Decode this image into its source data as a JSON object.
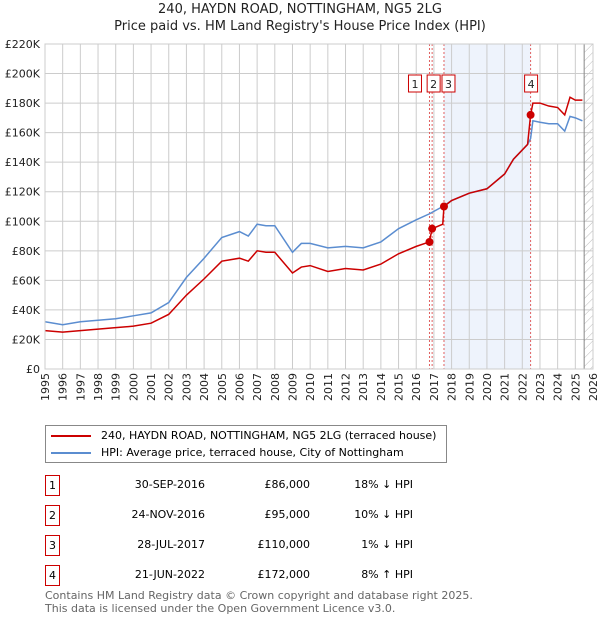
{
  "chart_data": {
    "type": "line",
    "title": "240, HAYDN ROAD, NOTTINGHAM, NG5 2LG",
    "subtitle": "Price paid vs. HM Land Registry's House Price Index (HPI)",
    "xlim": [
      1995,
      2026
    ],
    "ylim": [
      0,
      220000
    ],
    "yticks": [
      "£0",
      "£20K",
      "£40K",
      "£60K",
      "£80K",
      "£100K",
      "£120K",
      "£140K",
      "£160K",
      "£180K",
      "£200K",
      "£220K"
    ],
    "xticks": [
      "1995",
      "1996",
      "1997",
      "1998",
      "1999",
      "2000",
      "2001",
      "2002",
      "2003",
      "2004",
      "2005",
      "2006",
      "2007",
      "2008",
      "2009",
      "2010",
      "2011",
      "2012",
      "2013",
      "2014",
      "2015",
      "2016",
      "2017",
      "2018",
      "2019",
      "2020",
      "2021",
      "2022",
      "2023",
      "2024",
      "2025",
      "2026"
    ],
    "grid": true,
    "series": [
      {
        "name": "240, HAYDN ROAD, NOTTINGHAM, NG5 2LG (terraced house)",
        "color": "#cc0000",
        "x": [
          1995,
          1996,
          1997,
          1998,
          1999,
          2000,
          2001,
          2002,
          2003,
          2004,
          2005,
          2006,
          2006.5,
          2007,
          2007.5,
          2008,
          2009,
          2009.5,
          2010,
          2011,
          2012,
          2013,
          2014,
          2015,
          2016,
          2016.74,
          2016.9,
          2017.5,
          2017.57,
          2018,
          2019,
          2020,
          2021,
          2021.5,
          2022.3,
          2022.47,
          2022.6,
          2023,
          2023.5,
          2024,
          2024.4,
          2024.7,
          2025,
          2025.4
        ],
        "y": [
          26000,
          25000,
          26000,
          27000,
          28000,
          29000,
          31000,
          37000,
          50000,
          61000,
          73000,
          75000,
          73000,
          80000,
          79000,
          79000,
          65000,
          69000,
          70000,
          66000,
          68000,
          67000,
          71000,
          78000,
          83000,
          86000,
          95000,
          98000,
          110000,
          114000,
          119000,
          122000,
          132000,
          142000,
          152000,
          172000,
          180000,
          180000,
          178000,
          177000,
          172000,
          184000,
          182000,
          182000
        ]
      },
      {
        "name": "HPI: Average price, terraced house, City of Nottingham",
        "color": "#5b8dd0",
        "x": [
          1995,
          1996,
          1997,
          1998,
          1999,
          2000,
          2001,
          2002,
          2003,
          2004,
          2005,
          2006,
          2006.5,
          2007,
          2007.5,
          2008,
          2009,
          2009.5,
          2010,
          2011,
          2012,
          2013,
          2014,
          2015,
          2016,
          2016.74,
          2017.5,
          2018,
          2019,
          2020,
          2021,
          2021.5,
          2022.3,
          2022.47,
          2022.6,
          2023,
          2023.5,
          2024,
          2024.4,
          2024.7,
          2025,
          2025.4
        ],
        "y": [
          32000,
          30000,
          32000,
          33000,
          34000,
          36000,
          38000,
          45000,
          62000,
          75000,
          89000,
          93000,
          90000,
          98000,
          97000,
          97000,
          79000,
          85000,
          85000,
          82000,
          83000,
          82000,
          86000,
          95000,
          101000,
          105000,
          110000,
          114000,
          119000,
          122000,
          132000,
          142000,
          152000,
          156000,
          168000,
          167000,
          166000,
          166000,
          161000,
          171000,
          170000,
          168000
        ]
      }
    ],
    "sales": [
      {
        "label": "1",
        "x": 2016.75,
        "y": 86000
      },
      {
        "label": "2",
        "x": 2016.9,
        "y": 95000
      },
      {
        "label": "3",
        "x": 2017.57,
        "y": 110000
      },
      {
        "label": "4",
        "x": 2022.47,
        "y": 172000
      }
    ],
    "shaded_range": [
      2017.57,
      2022.47
    ],
    "forecast_from": 2025.5,
    "legend_position": "below"
  },
  "legend": [
    {
      "label": "240, HAYDN ROAD, NOTTINGHAM, NG5 2LG (terraced house)",
      "color": "#cc0000"
    },
    {
      "label": "HPI: Average price, terraced house, City of Nottingham",
      "color": "#5b8dd0"
    }
  ],
  "transactions": [
    {
      "num": "1",
      "date": "30-SEP-2016",
      "price": "£86,000",
      "hpi": "18% ↓ HPI"
    },
    {
      "num": "2",
      "date": "24-NOV-2016",
      "price": "£95,000",
      "hpi": "10% ↓ HPI"
    },
    {
      "num": "3",
      "date": "28-JUL-2017",
      "price": "£110,000",
      "hpi": "1% ↓ HPI"
    },
    {
      "num": "4",
      "date": "21-JUN-2022",
      "price": "£172,000",
      "hpi": "8% ↑ HPI"
    }
  ],
  "footer": [
    "Contains HM Land Registry data © Crown copyright and database right 2025.",
    "This data is licensed under the Open Government Licence v3.0."
  ]
}
